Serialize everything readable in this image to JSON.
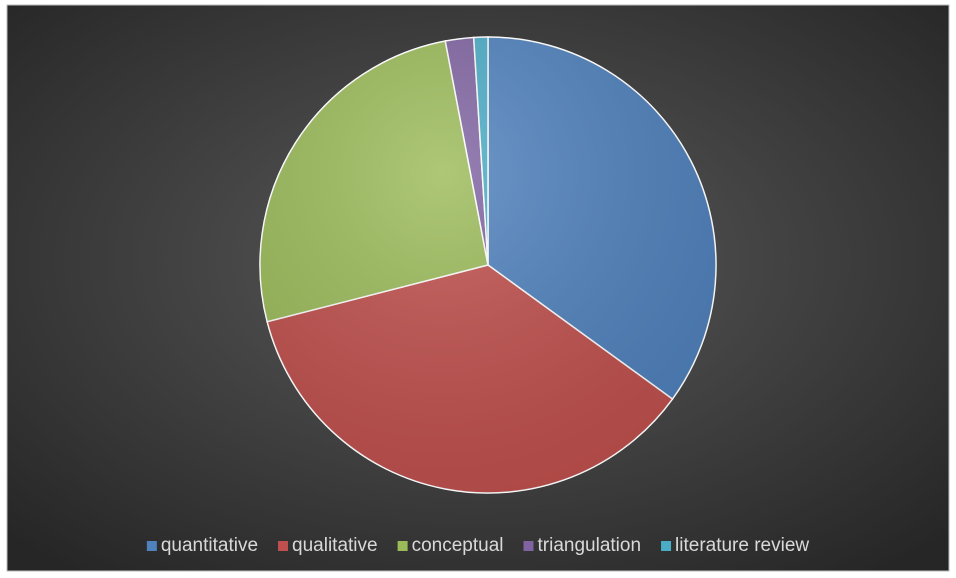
{
  "chart_data": {
    "type": "pie",
    "categories": [
      "quantitative",
      "qualitative",
      "conceptual",
      "triangulation",
      "literature review"
    ],
    "values": [
      35,
      36,
      26,
      2,
      1
    ],
    "colors": [
      "#4f81bd",
      "#c0504d",
      "#9bbb59",
      "#8064a2",
      "#4bacc6"
    ],
    "legend": "bottom"
  }
}
